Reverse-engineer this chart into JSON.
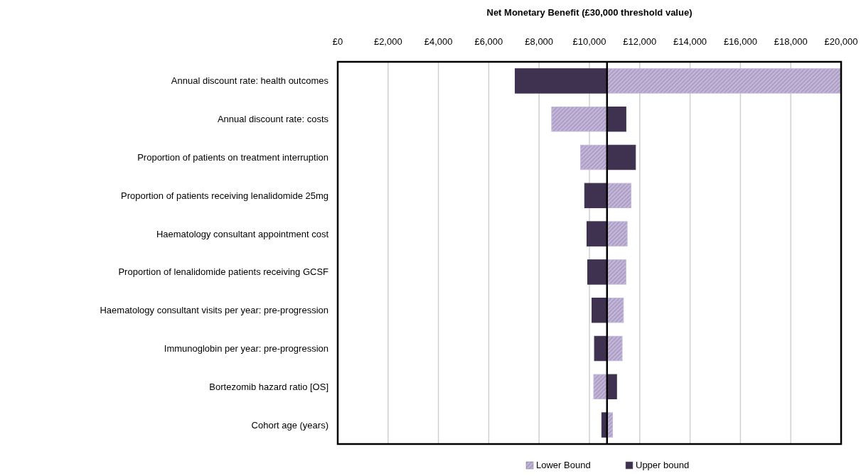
{
  "chart_data": {
    "type": "bar",
    "orientation": "horizontal",
    "title": "Net Monetary  Benefit (£30,000 threshold value)",
    "categories": [
      "Annual discount rate: health outcomes",
      "Annual discount rate: costs",
      "Proportion of patients on treatment interruption",
      "Proportion of patients receiving lenalidomide 25mg",
      "Haematology consultant appointment cost",
      "Proportion of lenalidomide patients receiving GCSF",
      "Haematology consultant visits per year: pre-progression",
      "Immunoglobin per year: pre-progression",
      "Bortezomib hazard ratio [OS]",
      "Cohort age (years)"
    ],
    "series": [
      {
        "name": "Lower Bound",
        "color": "#c4b6dc",
        "base": [
          10700,
          8500,
          9650,
          10700,
          10700,
          10700,
          10700,
          10700,
          10170,
          10700
        ],
        "values": [
          9300,
          2200,
          1050,
          950,
          800,
          750,
          650,
          600,
          530,
          220
        ]
      },
      {
        "name": "Upper bound",
        "color": "#3f3150",
        "base": [
          7050,
          10700,
          10700,
          9810,
          9900,
          9930,
          10100,
          10200,
          10700,
          10490
        ],
        "values": [
          3650,
          750,
          1130,
          890,
          800,
          770,
          600,
          500,
          380,
          210
        ]
      }
    ],
    "xlim": [
      0,
      20000
    ],
    "xticks": [
      {
        "value": 0,
        "label": "£0"
      },
      {
        "value": 2000,
        "label": "£2,000"
      },
      {
        "value": 4000,
        "label": "£4,000"
      },
      {
        "value": 6000,
        "label": "£6,000"
      },
      {
        "value": 8000,
        "label": "£8,000"
      },
      {
        "value": 10000,
        "label": "£10,000"
      },
      {
        "value": 12000,
        "label": "£12,000"
      },
      {
        "value": 14000,
        "label": "£14,000"
      },
      {
        "value": 16000,
        "label": "£16,000"
      },
      {
        "value": 18000,
        "label": "£18,000"
      },
      {
        "value": 20000,
        "label": "£20,000"
      }
    ],
    "ref_lines": [
      {
        "axis": "x",
        "value": 10700,
        "color": "#000000"
      }
    ],
    "grid": "x",
    "legend": "bottom"
  }
}
